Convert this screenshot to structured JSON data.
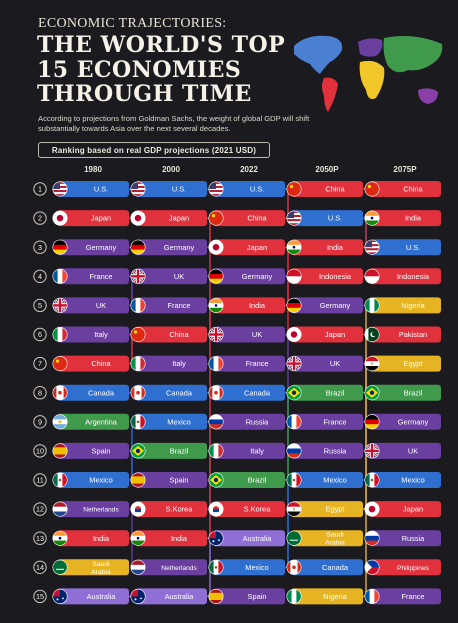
{
  "header": {
    "eyebrow": "ECONOMIC TRAJECTORIES:",
    "title": "THE WORLD'S TOP 15 ECONOMIES THROUGH TIME",
    "subtitle": "According to projections from Goldman Sachs, the weight of global GDP will shift substantially towards Asia over the next several decades.",
    "ranking_note": "Ranking based on real GDP projections (2021 USD)"
  },
  "map_colors": [
    "#4a7fd1",
    "#e0313d",
    "#6b3fa0",
    "#f0c628",
    "#3f9a4b",
    "#8a3ea8"
  ],
  "chart_data": {
    "type": "table",
    "columns": [
      "1980",
      "2000",
      "2022",
      "2050P",
      "2075P"
    ],
    "ranks": [
      1,
      2,
      3,
      4,
      5,
      6,
      7,
      8,
      9,
      10,
      11,
      12,
      13,
      14,
      15
    ],
    "rankings": [
      [
        "U.S.",
        "Japan",
        "Germany",
        "France",
        "UK",
        "Italy",
        "China",
        "Canada",
        "Argentina",
        "Spain",
        "Mexico",
        "Netherlands",
        "India",
        "Saudi Arabia",
        "Australia"
      ],
      [
        "U.S.",
        "Japan",
        "Germany",
        "UK",
        "France",
        "China",
        "Italy",
        "Canada",
        "Mexico",
        "Brazil",
        "Spain",
        "S.Korea",
        "India",
        "Netherlands",
        "Australia"
      ],
      [
        "U.S.",
        "China",
        "Japan",
        "Germany",
        "India",
        "UK",
        "France",
        "Canada",
        "Russia",
        "Italy",
        "Brazil",
        "S.Korea",
        "Australia",
        "Mexico",
        "Spain"
      ],
      [
        "China",
        "U.S.",
        "India",
        "Indonesia",
        "Germany",
        "Japan",
        "UK",
        "Brazil",
        "France",
        "Russia",
        "Mexico",
        "Egypt",
        "Saudi Arabia",
        "Canada",
        "Nigeria"
      ],
      [
        "China",
        "India",
        "U.S.",
        "Indonesia",
        "Nigeria",
        "Pakistan",
        "Egypt",
        "Brazil",
        "Germany",
        "UK",
        "Mexico",
        "Japan",
        "Russia",
        "Philippines",
        "France"
      ]
    ],
    "region_colors": {
      "U.S.": "#2f6fd0",
      "Canada": "#2f6fd0",
      "Mexico": "#2f6fd0",
      "China": "#e0313d",
      "Japan": "#e0313d",
      "India": "#e0313d",
      "S.Korea": "#e0313d",
      "Indonesia": "#e0313d",
      "Pakistan": "#e0313d",
      "Philippines": "#e0313d",
      "Germany": "#6b3fa0",
      "France": "#6b3fa0",
      "UK": "#6b3fa0",
      "Italy": "#6b3fa0",
      "Spain": "#6b3fa0",
      "Netherlands": "#6b3fa0",
      "Russia": "#6b3fa0",
      "Argentina": "#3f9a4b",
      "Brazil": "#3f9a4b",
      "Saudi Arabia": "#e6b422",
      "Egypt": "#e6b422",
      "Nigeria": "#e6b422",
      "Australia": "#8f6fd6"
    },
    "country_flags": {
      "U.S.": "us",
      "Japan": "jp",
      "Germany": "de",
      "France": "fr",
      "UK": "uk",
      "Italy": "it",
      "China": "cn",
      "Canada": "ca",
      "Argentina": "ar",
      "Spain": "es",
      "Mexico": "mx",
      "Netherlands": "nl",
      "India": "in",
      "Saudi Arabia": "sa",
      "Australia": "au",
      "Brazil": "br",
      "S.Korea": "kr",
      "Russia": "ru",
      "Indonesia": "id",
      "Egypt": "eg",
      "Nigeria": "ng",
      "Pakistan": "pk",
      "Philippines": "ph"
    }
  }
}
